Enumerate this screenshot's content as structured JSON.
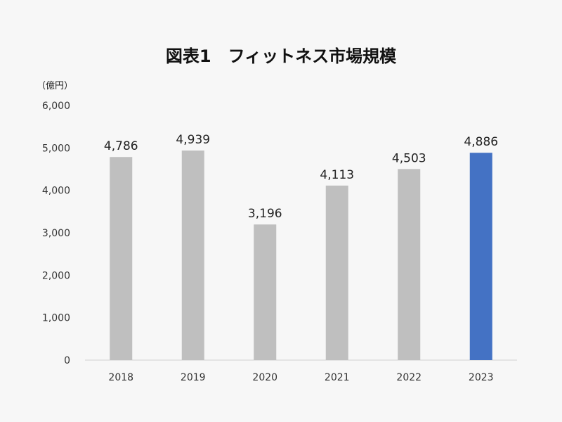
{
  "chart_data": {
    "type": "bar",
    "title": "図表1　フィットネス市場規模",
    "ylabel": "（億円）",
    "xlabel": "",
    "categories": [
      "2018",
      "2019",
      "2020",
      "2021",
      "2022",
      "2023"
    ],
    "values": [
      4786,
      4939,
      3196,
      4113,
      4503,
      4886
    ],
    "value_labels": [
      "4,786",
      "4,939",
      "3,196",
      "4,113",
      "4,503",
      "4,886"
    ],
    "ylim": [
      0,
      6000
    ],
    "yticks": [
      0,
      1000,
      2000,
      3000,
      4000,
      5000,
      6000
    ],
    "ytick_labels": [
      "0",
      "1,000",
      "2,000",
      "3,000",
      "4,000",
      "5,000",
      "6,000"
    ],
    "grid": false,
    "highlight_index": 5,
    "colors": {
      "bar": "#bfbfbf",
      "highlight": "#4472c4",
      "axis": "#d0d0d0"
    }
  }
}
